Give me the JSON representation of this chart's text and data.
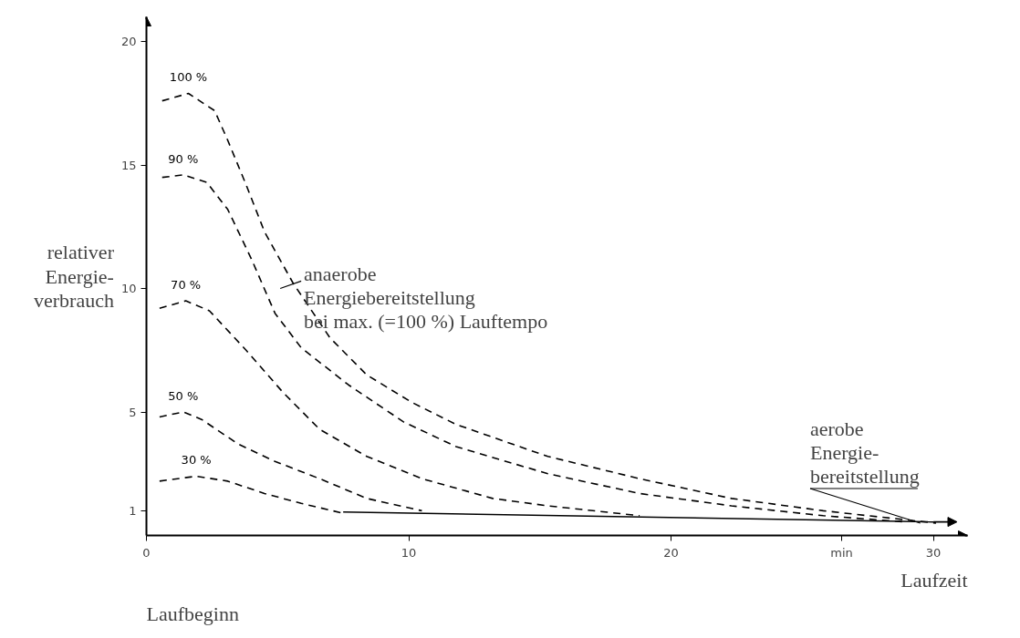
{
  "chart_data": {
    "type": "line",
    "ylabel": "relativer\nEnergie-\nverbrauch",
    "xlabel": "Laufzeit",
    "xlim": [
      0,
      31.3
    ],
    "ylim": [
      0,
      21
    ],
    "xticks": [
      0,
      10,
      20,
      {
        "value": 26.5,
        "label": "min"
      },
      30
    ],
    "yticks": [
      1,
      5,
      10,
      15,
      20
    ],
    "grid": false,
    "legend": false,
    "line_style": "dashed",
    "marker": "none",
    "series": [
      {
        "name": "100 %",
        "color": "#000000",
        "x": [
          0.6,
          1.6,
          2.6,
          3.1,
          3.8,
          4.5,
          5.6,
          7,
          8.4,
          10.1,
          11.8,
          15.3,
          18.8,
          22.3,
          25.8,
          30.1
        ],
        "values": [
          17.6,
          17.9,
          17.2,
          16,
          14.2,
          12.3,
          10.2,
          8,
          6.5,
          5.4,
          4.5,
          3.2,
          2.3,
          1.5,
          1,
          0.5
        ]
      },
      {
        "name": "90 %",
        "color": "#000000",
        "x": [
          0.6,
          1.4,
          2.3,
          3.1,
          4,
          4.9,
          5.9,
          7.7,
          9.8,
          11.8,
          15.3,
          18.8,
          22.3,
          25.8,
          28.9
        ],
        "values": [
          14.5,
          14.6,
          14.3,
          13.2,
          11.2,
          9,
          7.6,
          6.1,
          4.6,
          3.6,
          2.5,
          1.7,
          1.2,
          0.8,
          0.55
        ]
      },
      {
        "name": "70 %",
        "color": "#000000",
        "x": [
          0.5,
          1.5,
          2.4,
          3.8,
          5.2,
          6.6,
          8.4,
          10.5,
          13.2,
          15.3,
          18.8
        ],
        "values": [
          9.2,
          9.5,
          9.1,
          7.5,
          5.8,
          4.3,
          3.2,
          2.3,
          1.5,
          1.2,
          0.8
        ]
      },
      {
        "name": "50 %",
        "color": "#000000",
        "x": [
          0.5,
          1.4,
          2.1,
          3.5,
          4.9,
          6.6,
          8.4,
          10.5
        ],
        "values": [
          4.8,
          5,
          4.7,
          3.7,
          3,
          2.3,
          1.5,
          1
        ]
      },
      {
        "name": "30 %",
        "color": "#000000",
        "x": [
          0.5,
          1.9,
          3.1,
          4.5,
          5.9,
          7.5
        ],
        "values": [
          2.2,
          2.4,
          2.2,
          1.7,
          1.3,
          0.9
        ]
      },
      {
        "color": "#000000",
        "line_style": "solid",
        "x": [
          7.5,
          30
        ],
        "values": [
          0.95,
          0.55
        ]
      }
    ],
    "annotations": [
      {
        "text": "anaerobe\nEnergiebereitstellung\nbei max. (=100 %) Lauftempo",
        "x": 5.1,
        "y": 10
      },
      {
        "text": "aerobe\nEnergie-\nbereitstellung",
        "x": 29.5,
        "y": 0.5
      },
      "Laufbeginn"
    ]
  }
}
